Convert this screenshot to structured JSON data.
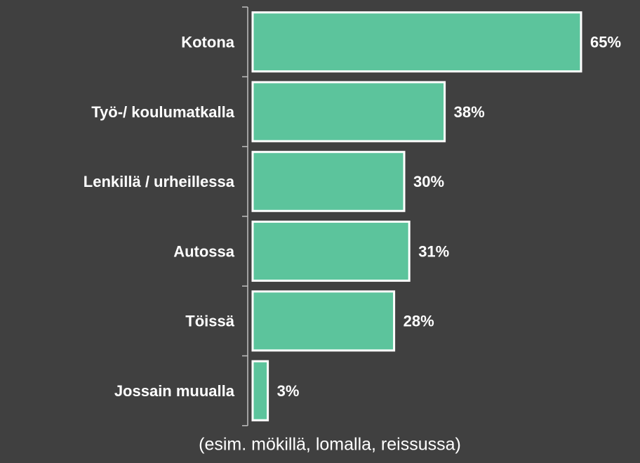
{
  "chart_data": {
    "type": "bar",
    "orientation": "horizontal",
    "categories": [
      "Kotona",
      "Työ-/ koulumatkalla",
      "Lenkillä / urheillessa",
      "Autossa",
      "Töissä",
      "Jossain muualla"
    ],
    "values": [
      65,
      38,
      30,
      31,
      28,
      3
    ],
    "value_labels": [
      "65%",
      "38%",
      "30%",
      "31%",
      "28%",
      "3%"
    ],
    "color": "#5cc49c",
    "annotation": "(esim. mökillä, lomalla, reissussa)"
  }
}
